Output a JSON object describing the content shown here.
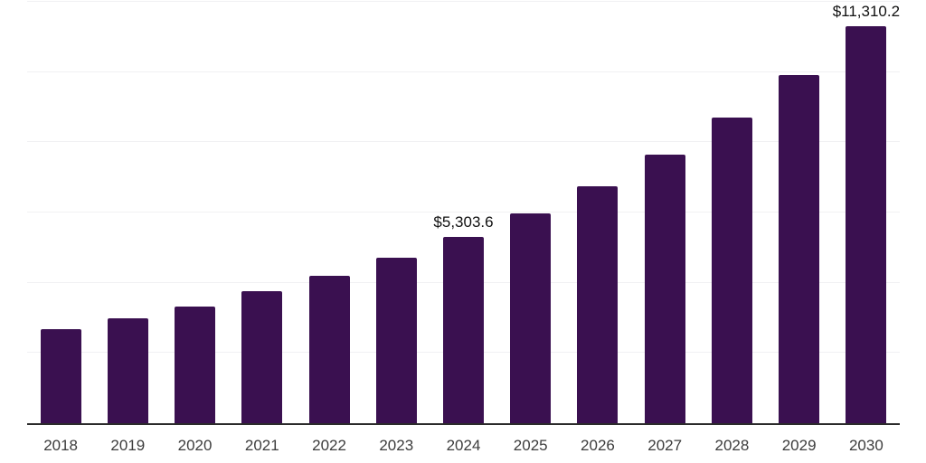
{
  "chart_data": {
    "type": "bar",
    "categories": [
      "2018",
      "2019",
      "2020",
      "2021",
      "2022",
      "2023",
      "2024",
      "2025",
      "2026",
      "2027",
      "2028",
      "2029",
      "2030"
    ],
    "values": [
      2680,
      2990,
      3320,
      3760,
      4200,
      4710,
      5303.6,
      5970,
      6750,
      7650,
      8700,
      9910,
      11310.2
    ],
    "annotations": [
      {
        "category": "2024",
        "text": "$5,303.6"
      },
      {
        "category": "2030",
        "text": "$11,310.2"
      }
    ],
    "title": "",
    "xlabel": "",
    "ylabel": "",
    "ylim": [
      0,
      12000
    ],
    "gridline_step": 2000,
    "grid": "horizontal",
    "y_axis_labels_visible": false,
    "legend": "none",
    "colors": {
      "bar": "#3A1050",
      "gridline": "#F1F1F3",
      "axis_line": "#2B2B2B",
      "tick_label": "#3C3C3C",
      "annotation_text": "#111111"
    }
  }
}
